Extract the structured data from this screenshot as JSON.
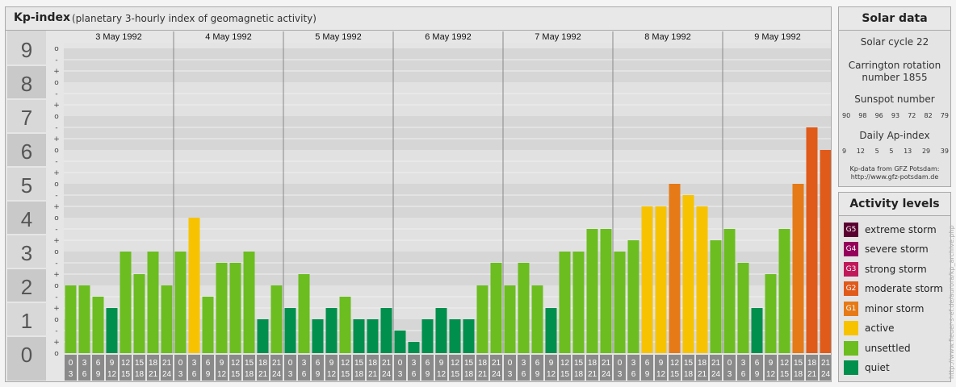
{
  "header": {
    "title": "Kp-index",
    "subtitle": "(planetary 3-hourly index of geomagnetic activity)"
  },
  "chart_data": {
    "type": "bar",
    "title": "Kp-index",
    "subtitle": "(planetary 3-hourly index of geomagnetic activity)",
    "ylim": [
      0,
      9
    ],
    "y_ticks": [
      "0",
      "1",
      "2",
      "3",
      "4",
      "5",
      "6",
      "7",
      "8",
      "9"
    ],
    "y_subticks": [
      "o",
      "+",
      "-"
    ],
    "days": [
      "3 May 1992",
      "4 May 1992",
      "5 May 1992",
      "6 May 1992",
      "7 May 1992",
      "8 May 1992",
      "9 May 1992"
    ],
    "interval_start_labels": [
      "0",
      "3",
      "6",
      "9",
      "12",
      "15",
      "18",
      "21"
    ],
    "interval_end_labels": [
      "3",
      "6",
      "9",
      "12",
      "15",
      "18",
      "21",
      "24"
    ],
    "values": [
      [
        2.0,
        2.0,
        1.667,
        1.333,
        3.0,
        2.333,
        3.0,
        2.0
      ],
      [
        3.0,
        4.0,
        1.667,
        2.667,
        2.667,
        3.0,
        1.0,
        2.0
      ],
      [
        1.333,
        2.333,
        1.0,
        1.333,
        1.667,
        1.0,
        1.0,
        1.333
      ],
      [
        0.667,
        0.333,
        1.0,
        1.333,
        1.0,
        1.0,
        2.0,
        2.667
      ],
      [
        2.0,
        2.667,
        2.0,
        1.333,
        3.0,
        3.0,
        3.667,
        3.667
      ],
      [
        3.0,
        3.333,
        4.333,
        4.333,
        5.0,
        4.667,
        4.333,
        3.333
      ],
      [
        3.667,
        2.667,
        1.333,
        2.333,
        3.667,
        5.0,
        6.667,
        6.0
      ]
    ],
    "grid": true,
    "legend": "right panel"
  },
  "colors": {
    "quiet": "#008f4c",
    "unsettled": "#6cbd1f",
    "active": "#f7c300",
    "G1": "#e57a17",
    "G2": "#e05a1a",
    "G3": "#c0195a",
    "G4": "#94005a",
    "G5": "#5a0030"
  },
  "solar": {
    "title": "Solar data",
    "cycle": "Solar cycle 22",
    "carrington_1": "Carrington rotation",
    "carrington_2": "number 1855",
    "sunspot_label": "Sunspot number",
    "sunspot_values": [
      "90",
      "98",
      "96",
      "93",
      "72",
      "82",
      "79"
    ],
    "ap_label": "Daily Ap-index",
    "ap_values": [
      "9",
      "12",
      "5",
      "5",
      "13",
      "29",
      "39"
    ],
    "source_1": "Kp-data from GFZ Potsdam:",
    "source_2": "http://www.gfz-potsdam.de"
  },
  "levels": {
    "title": "Activity levels",
    "items": [
      {
        "badge": "G5",
        "label": "extreme storm",
        "color": "#5a0030"
      },
      {
        "badge": "G4",
        "label": "severe storm",
        "color": "#94005a"
      },
      {
        "badge": "G3",
        "label": "strong storm",
        "color": "#c0195a"
      },
      {
        "badge": "G2",
        "label": "moderate storm",
        "color": "#e05a1a"
      },
      {
        "badge": "G1",
        "label": "minor storm",
        "color": "#e57a17"
      },
      {
        "badge": "",
        "label": "active",
        "color": "#f7c300"
      },
      {
        "badge": "",
        "label": "unsettled",
        "color": "#6cbd1f"
      },
      {
        "badge": "",
        "label": "quiet",
        "color": "#008f4c"
      }
    ]
  },
  "watermark": "http://www.fieuer-s-ef.de/aurora/kp_archive.php"
}
